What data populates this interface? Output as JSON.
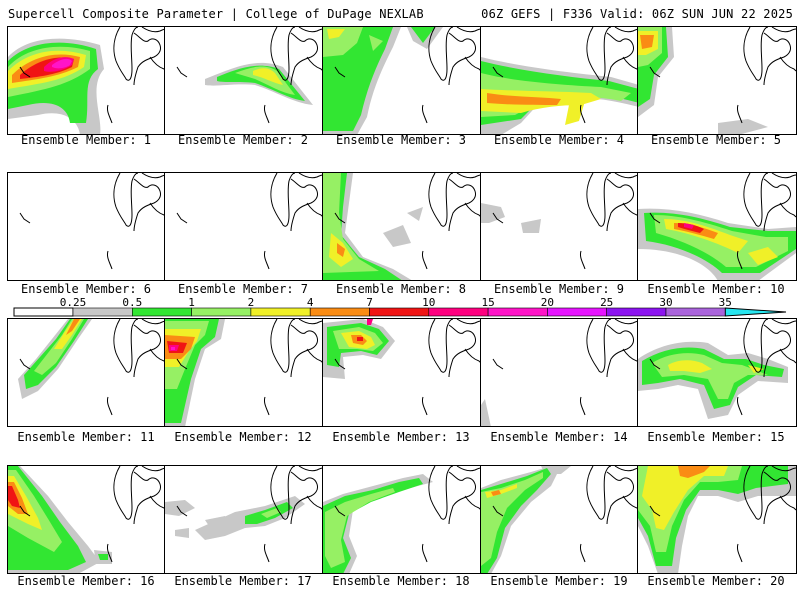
{
  "header": {
    "left": "Supercell Composite Parameter | College of DuPage NEXLAB",
    "right": "06Z GEFS | F336 Valid: 06Z SUN JUN 22 2025"
  },
  "chart_data": {
    "type": "heatmap",
    "title": "Supercell Composite Parameter",
    "source": "College of DuPage NEXLAB",
    "model": "06Z GEFS",
    "forecast_hour": "F336",
    "valid": "06Z SUN JUN 22 2025",
    "colorbar": {
      "ticks": [
        "0.25",
        "0.5",
        "1",
        "2",
        "4",
        "7",
        "10",
        "15",
        "20",
        "25",
        "30",
        "35"
      ],
      "colors": [
        "#c8c8c8",
        "#32e632",
        "#96f064",
        "#f0f028",
        "#fa8c14",
        "#f01414",
        "#ff0080",
        "#ff14c8",
        "#e614ff",
        "#8c14f0",
        "#aa64dc",
        "#28e6f0"
      ],
      "under_color": "#ffffff",
      "over_color": "#28e6f0"
    },
    "panels": [
      {
        "label": "Ensemble Member: 1",
        "max_category": "15"
      },
      {
        "label": "Ensemble Member: 2",
        "max_category": "2"
      },
      {
        "label": "Ensemble Member: 3",
        "max_category": "2"
      },
      {
        "label": "Ensemble Member: 4",
        "max_category": "4"
      },
      {
        "label": "Ensemble Member: 5",
        "max_category": "4"
      },
      {
        "label": "Ensemble Member: 6",
        "max_category": "0"
      },
      {
        "label": "Ensemble Member: 7",
        "max_category": "0"
      },
      {
        "label": "Ensemble Member: 8",
        "max_category": "4"
      },
      {
        "label": "Ensemble Member: 9",
        "max_category": "0.25"
      },
      {
        "label": "Ensemble Member: 10",
        "max_category": "10"
      },
      {
        "label": "Ensemble Member: 11",
        "max_category": "4"
      },
      {
        "label": "Ensemble Member: 12",
        "max_category": "15"
      },
      {
        "label": "Ensemble Member: 13",
        "max_category": "10"
      },
      {
        "label": "Ensemble Member: 14",
        "max_category": "0.5"
      },
      {
        "label": "Ensemble Member: 15",
        "max_category": "2"
      },
      {
        "label": "Ensemble Member: 16",
        "max_category": "7"
      },
      {
        "label": "Ensemble Member: 17",
        "max_category": "1"
      },
      {
        "label": "Ensemble Member: 18",
        "max_category": "1"
      },
      {
        "label": "Ensemble Member: 19",
        "max_category": "4"
      },
      {
        "label": "Ensemble Member: 20",
        "max_category": "4"
      }
    ]
  }
}
